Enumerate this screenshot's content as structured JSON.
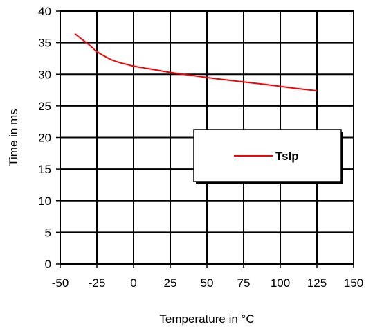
{
  "chart_data": {
    "type": "line",
    "xlabel": "Temperature in °C",
    "ylabel": "Time in ms",
    "xlim": [
      -50,
      150
    ],
    "ylim": [
      0,
      40
    ],
    "x_ticks": [
      -50,
      -25,
      0,
      25,
      50,
      75,
      100,
      125,
      150
    ],
    "y_ticks": [
      0,
      5,
      10,
      15,
      20,
      25,
      30,
      35,
      40
    ],
    "grid": true,
    "legend_position": "right",
    "series": [
      {
        "name": "Tslp",
        "color": "#ff0000",
        "x": [
          -40,
          -35,
          -30,
          -25,
          -20,
          -15,
          -10,
          -5,
          0,
          10,
          25,
          40,
          50,
          60,
          75,
          90,
          100,
          110,
          125
        ],
        "y": [
          36.4,
          35.5,
          34.6,
          33.6,
          32.9,
          32.3,
          31.9,
          31.6,
          31.3,
          30.9,
          30.3,
          29.8,
          29.5,
          29.2,
          28.8,
          28.4,
          28.1,
          27.8,
          27.4
        ]
      }
    ]
  }
}
